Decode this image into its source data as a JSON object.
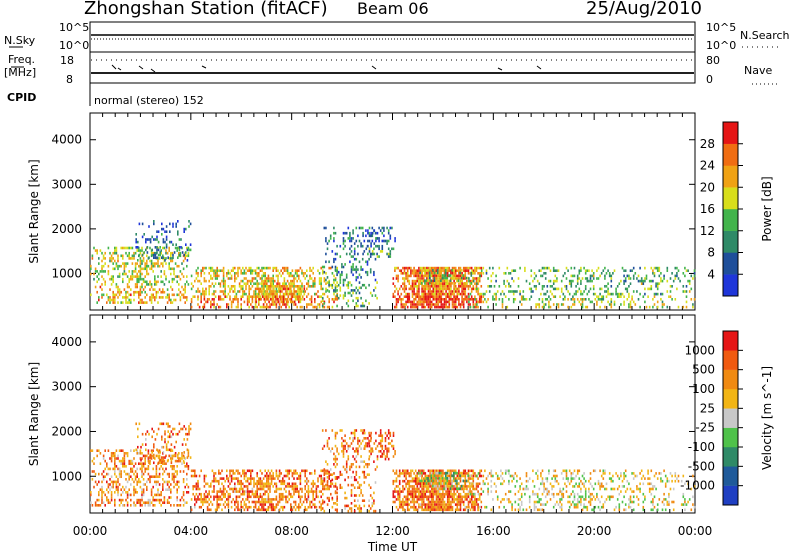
{
  "header": {
    "station": "Zhongshan Station (fitACF)",
    "beam": "Beam 06",
    "date": "25/Aug/2010"
  },
  "summary_panel": {
    "nsky_label": "N.Sky",
    "nsky_ticks": [
      "10^5",
      "10^0"
    ],
    "nsearch_label": "N.Search",
    "nsearch_ticks": [
      "10^5",
      "10^0"
    ],
    "freq_label_1": "Freq.",
    "freq_label_2": "[MHz]",
    "freq_ticks": [
      "18",
      "8"
    ],
    "nave_label": "Nave",
    "nave_ticks": [
      "80",
      "0"
    ],
    "cpid_label": "CPID",
    "cpid_text": "normal (stereo) 152"
  },
  "chart_data": [
    {
      "type": "heatmap",
      "title": "",
      "xlabel": "",
      "ylabel": "Slant Range [km]",
      "x_ticks": [
        "00:00",
        "04:00",
        "08:00",
        "12:00",
        "16:00",
        "20:00",
        "00:00"
      ],
      "y_ticks": [
        "1000",
        "2000",
        "3000",
        "4000"
      ],
      "ylim": [
        180,
        4600
      ],
      "colorbar": {
        "label": "Power [dB]",
        "ticks": [
          "4",
          "8",
          "12",
          "16",
          "20",
          "24",
          "28"
        ],
        "colors": [
          "#1f36d9",
          "#1f4f9a",
          "#2f8a67",
          "#42b44b",
          "#d8de1b",
          "#f0a214",
          "#f06d12",
          "#e51515"
        ]
      },
      "series": [
        {
          "clusters": [
            {
              "t0": 0.0,
              "t1": 3.9,
              "r0": 350,
              "r1": 1600,
              "density": 0.35,
              "mean": 0.55
            },
            {
              "t0": 1.8,
              "t1": 4.0,
              "r0": 1300,
              "r1": 2200,
              "density": 0.18,
              "mean": 0.2
            },
            {
              "t0": 4.0,
              "t1": 9.8,
              "r0": 250,
              "r1": 1150,
              "density": 0.45,
              "mean": 0.62
            },
            {
              "t0": 6.5,
              "t1": 8.5,
              "r0": 350,
              "r1": 800,
              "density": 0.55,
              "mean": 0.72
            },
            {
              "t0": 9.2,
              "t1": 11.4,
              "r0": 250,
              "r1": 2050,
              "density": 0.22,
              "mean": 0.28
            },
            {
              "t0": 10.8,
              "t1": 12.1,
              "r0": 1400,
              "r1": 2050,
              "density": 0.28,
              "mean": 0.22
            },
            {
              "t0": 12.0,
              "t1": 15.5,
              "r0": 250,
              "r1": 1150,
              "density": 0.72,
              "mean": 0.78
            },
            {
              "t0": 13.0,
              "t1": 15.2,
              "r0": 750,
              "r1": 1100,
              "density": 0.35,
              "mean": 0.45
            },
            {
              "t0": 15.0,
              "t1": 24.0,
              "r0": 250,
              "r1": 1150,
              "density": 0.24,
              "mean": 0.42
            }
          ]
        }
      ]
    },
    {
      "type": "heatmap",
      "title": "",
      "xlabel": "Time UT",
      "ylabel": "Slant Range [km]",
      "x_ticks": [
        "00:00",
        "04:00",
        "08:00",
        "12:00",
        "16:00",
        "20:00",
        "00:00"
      ],
      "y_ticks": [
        "1000",
        "2000",
        "3000",
        "4000"
      ],
      "ylim": [
        180,
        4600
      ],
      "colorbar": {
        "label": "Velocity [m s^-1]",
        "ticks": [
          "1000",
          "500",
          "100",
          "25",
          "-25",
          "-100",
          "-500",
          "-1000"
        ],
        "colors": [
          "#1f3fc2",
          "#1f5a9a",
          "#2f8a67",
          "#4fc24a",
          "#c8c8c8",
          "#f2b515",
          "#f08a12",
          "#f05a10",
          "#e51515"
        ]
      },
      "series": [
        {
          "clusters": [
            {
              "t0": 0.0,
              "t1": 3.9,
              "r0": 350,
              "r1": 1600,
              "density": 0.35,
              "mean": 0.72
            },
            {
              "t0": 1.8,
              "t1": 4.0,
              "r0": 1300,
              "r1": 2200,
              "density": 0.18,
              "mean": 0.75
            },
            {
              "t0": 4.0,
              "t1": 9.8,
              "r0": 250,
              "r1": 1150,
              "density": 0.45,
              "mean": 0.76
            },
            {
              "t0": 9.2,
              "t1": 11.4,
              "r0": 250,
              "r1": 2050,
              "density": 0.22,
              "mean": 0.74
            },
            {
              "t0": 10.8,
              "t1": 12.1,
              "r0": 1400,
              "r1": 2050,
              "density": 0.28,
              "mean": 0.82
            },
            {
              "t0": 12.0,
              "t1": 15.5,
              "r0": 250,
              "r1": 1150,
              "density": 0.72,
              "mean": 0.76
            },
            {
              "t0": 13.0,
              "t1": 15.2,
              "r0": 750,
              "r1": 1100,
              "density": 0.35,
              "mean": 0.48
            },
            {
              "t0": 15.0,
              "t1": 24.0,
              "r0": 250,
              "r1": 1150,
              "density": 0.24,
              "mean": 0.55
            }
          ]
        }
      ]
    }
  ]
}
